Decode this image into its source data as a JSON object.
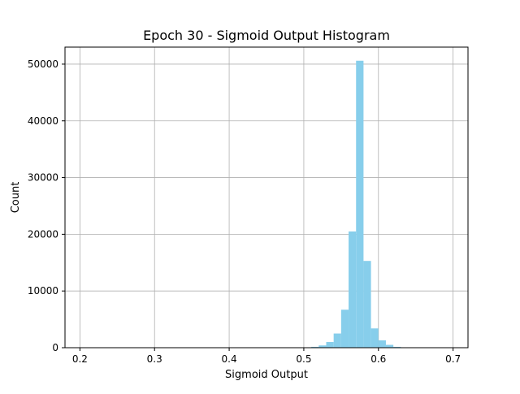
{
  "chart_data": {
    "type": "bar",
    "title": "Epoch 30 - Sigmoid Output Histogram",
    "xlabel": "Sigmoid Output",
    "ylabel": "Count",
    "xlim": [
      0.18,
      0.72
    ],
    "ylim": [
      0,
      53000
    ],
    "xticks": [
      0.2,
      0.3,
      0.4,
      0.5,
      0.6,
      0.7
    ],
    "xtick_labels": [
      "0.2",
      "0.3",
      "0.4",
      "0.5",
      "0.6",
      "0.7"
    ],
    "yticks": [
      0,
      10000,
      20000,
      30000,
      40000,
      50000
    ],
    "ytick_labels": [
      "0",
      "10000",
      "20000",
      "30000",
      "40000",
      "50000"
    ],
    "grid": true,
    "bar_color": "#87ceeb",
    "bin_width": 0.01,
    "bins": [
      {
        "x0": 0.51,
        "x1": 0.52,
        "value": 150
      },
      {
        "x0": 0.52,
        "x1": 0.53,
        "value": 400
      },
      {
        "x0": 0.53,
        "x1": 0.54,
        "value": 1000
      },
      {
        "x0": 0.54,
        "x1": 0.55,
        "value": 2500
      },
      {
        "x0": 0.55,
        "x1": 0.56,
        "value": 6700
      },
      {
        "x0": 0.56,
        "x1": 0.57,
        "value": 20500
      },
      {
        "x0": 0.57,
        "x1": 0.58,
        "value": 50600
      },
      {
        "x0": 0.58,
        "x1": 0.59,
        "value": 15300
      },
      {
        "x0": 0.59,
        "x1": 0.6,
        "value": 3400
      },
      {
        "x0": 0.6,
        "x1": 0.61,
        "value": 1300
      },
      {
        "x0": 0.61,
        "x1": 0.62,
        "value": 500
      },
      {
        "x0": 0.62,
        "x1": 0.63,
        "value": 150
      },
      {
        "x0": 0.63,
        "x1": 0.64,
        "value": 50
      }
    ]
  }
}
